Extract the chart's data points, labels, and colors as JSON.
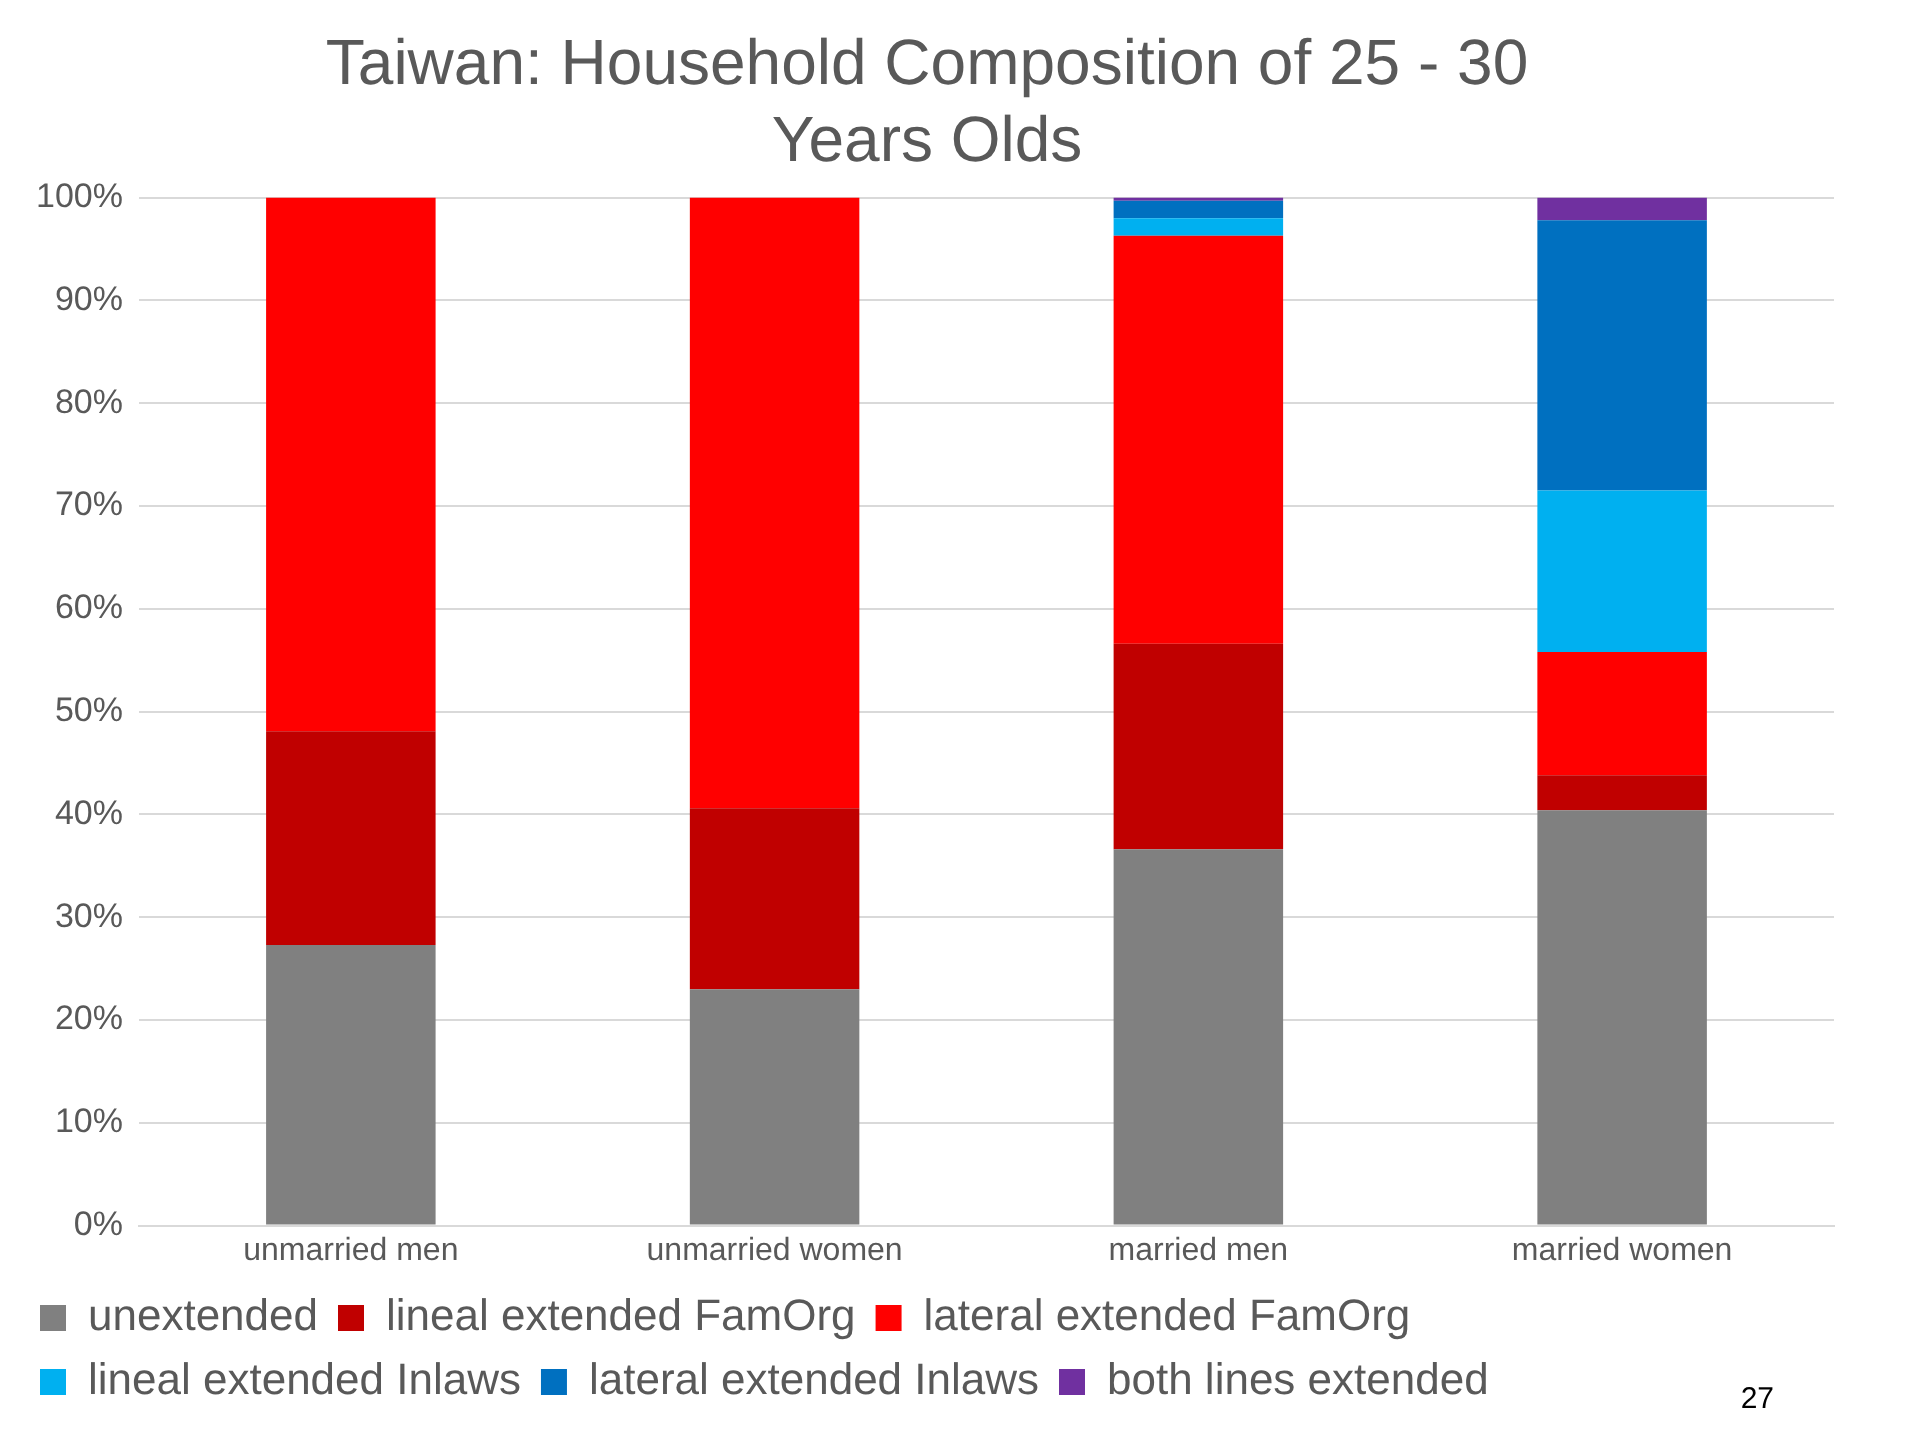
{
  "chart_data": {
    "type": "bar",
    "stacked": true,
    "title": [
      "Taiwan: Household Composition of 25 - 30",
      "Years Olds"
    ],
    "categories": [
      "unmarried men",
      "unmarried women",
      "married men",
      "married women"
    ],
    "series": [
      {
        "name": "unextended",
        "color": "#808080",
        "values": [
          27.3,
          23.0,
          36.6,
          40.4
        ]
      },
      {
        "name": "lineal extended FamOrg",
        "color": "#c00000",
        "values": [
          20.8,
          17.6,
          20.0,
          3.4
        ]
      },
      {
        "name": "lateral extended FamOrg",
        "color": "#ff0000",
        "values": [
          51.9,
          59.4,
          39.7,
          12.0
        ]
      },
      {
        "name": "lineal extended Inlaws",
        "color": "#00b0f0",
        "values": [
          0,
          0,
          1.7,
          15.7
        ]
      },
      {
        "name": "lateral extended Inlaws",
        "color": "#0070c0",
        "values": [
          0,
          0,
          1.7,
          26.3
        ]
      },
      {
        "name": "both lines extended",
        "color": "#7030a0",
        "values": [
          0,
          0,
          0.3,
          2.2
        ]
      }
    ],
    "ylim": [
      0,
      100
    ],
    "yticks": [
      {
        "value": 0,
        "label": "0%"
      },
      {
        "value": 10,
        "label": "10%"
      },
      {
        "value": 20,
        "label": "20%"
      },
      {
        "value": 30,
        "label": "30%"
      },
      {
        "value": 40,
        "label": "40%"
      },
      {
        "value": 50,
        "label": "50%"
      },
      {
        "value": 60,
        "label": "60%"
      },
      {
        "value": 70,
        "label": "70%"
      },
      {
        "value": 80,
        "label": "80%"
      },
      {
        "value": 90,
        "label": "90%"
      },
      {
        "value": 100,
        "label": "100%"
      }
    ],
    "grid": "y",
    "legend": "bottom",
    "annotations": [
      "27"
    ]
  }
}
